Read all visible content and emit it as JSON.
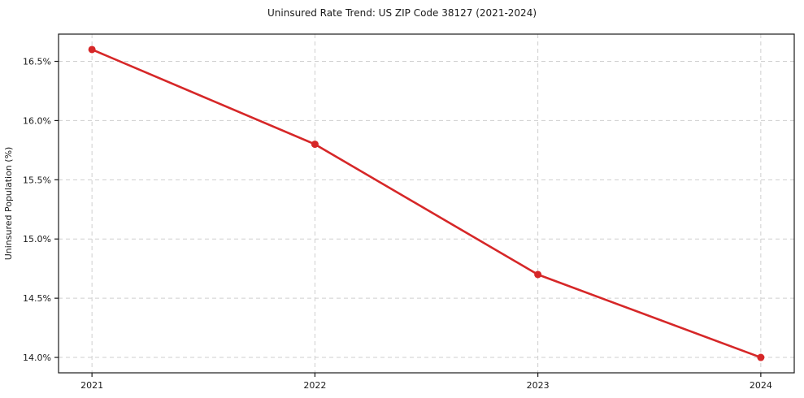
{
  "chart_data": {
    "type": "line",
    "title": "Uninsured Rate Trend: US ZIP Code 38127 (2021-2024)",
    "xlabel": "",
    "ylabel": "Uninsured Population (%)",
    "x": [
      2021,
      2022,
      2023,
      2024
    ],
    "values": [
      16.6,
      15.8,
      14.7,
      14.0
    ],
    "xtick_labels": [
      "2021",
      "2022",
      "2023",
      "2024"
    ],
    "ytick_values": [
      14.0,
      14.5,
      15.0,
      15.5,
      16.0,
      16.5
    ],
    "ytick_labels": [
      "14.0%",
      "14.5%",
      "15.0%",
      "15.5%",
      "16.0%",
      "16.5%"
    ],
    "xlim": [
      2020.85,
      2024.15
    ],
    "ylim": [
      13.87,
      16.73
    ],
    "grid": true,
    "grid_style": "dashed",
    "legend_position": "none",
    "line_color": "#d62728",
    "marker": "circle",
    "frame_color": "#1a1a1a",
    "grid_color": "#cfcfcf"
  }
}
